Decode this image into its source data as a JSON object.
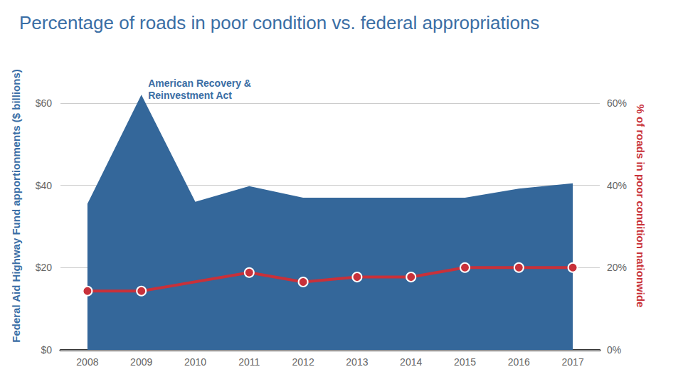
{
  "chart_data": {
    "type": "line",
    "title": "Percentage of roads in poor condition vs. federal appropriations",
    "categories": [
      "2008",
      "2009",
      "2010",
      "2011",
      "2012",
      "2013",
      "2014",
      "2015",
      "2016",
      "2017"
    ],
    "series": [
      {
        "type": "area",
        "color": "#34679a",
        "values": [
          35.5,
          62,
          36,
          39.8,
          37,
          37,
          37,
          37,
          39.2,
          40.5
        ]
      },
      {
        "type": "line",
        "axis": "y2",
        "color": "#c8313a",
        "marker": "circle",
        "values": [
          14.3,
          14.3,
          null,
          18.8,
          16.5,
          17.7,
          17.7,
          20,
          20,
          20
        ]
      }
    ],
    "ylabel": "Federal Aid Highway Fund apportionments ($ billions)",
    "y2label": "% of roads in poor condition nationwide",
    "ylim": [
      0,
      70
    ],
    "yticks": [
      {
        "value": 0,
        "label": "$0"
      },
      {
        "value": 20,
        "label": "$20"
      },
      {
        "value": 40,
        "label": "$40"
      },
      {
        "value": 60,
        "label": "$60"
      }
    ],
    "y2lim": [
      0,
      70
    ],
    "y2ticks": [
      {
        "value": 0,
        "label": "0%"
      },
      {
        "value": 20,
        "label": "20%"
      },
      {
        "value": 40,
        "label": "40%"
      },
      {
        "value": 60,
        "label": "60%"
      }
    ],
    "grid": true,
    "annotations": [
      {
        "text": "American Recovery & Reinvestment Act",
        "x": "2009",
        "y": 62
      }
    ]
  }
}
